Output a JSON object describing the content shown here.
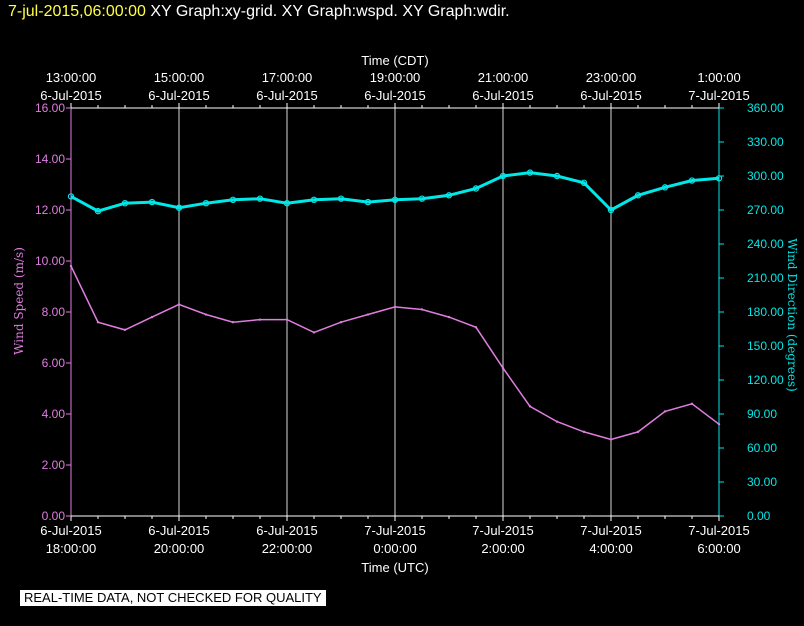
{
  "header": {
    "timestamp": "7-jul-2015,06:00:00",
    "title": "XY Graph:xy-grid.  XY Graph:wspd.  XY Graph:wdir."
  },
  "notice": "REAL-TIME DATA, NOT CHECKED FOR QUALITY",
  "colors": {
    "speed": "#e07ee0",
    "direction": "#00e8e8",
    "grid": "#ffffff",
    "text": "#ffffff",
    "timestamp": "#ffff44"
  },
  "chart_data": {
    "type": "line",
    "top_axis": {
      "label": "Time (CDT)",
      "ticks": [
        {
          "time": "13:00:00",
          "date": "6-Jul-2015"
        },
        {
          "time": "15:00:00",
          "date": "6-Jul-2015"
        },
        {
          "time": "17:00:00",
          "date": "6-Jul-2015"
        },
        {
          "time": "19:00:00",
          "date": "6-Jul-2015"
        },
        {
          "time": "21:00:00",
          "date": "6-Jul-2015"
        },
        {
          "time": "23:00:00",
          "date": "6-Jul-2015"
        },
        {
          "time": "1:00:00",
          "date": "7-Jul-2015"
        }
      ]
    },
    "bottom_axis": {
      "label": "Time (UTC)",
      "range": [
        "2015-07-06T18:00:00",
        "2015-07-07T06:00:00"
      ],
      "ticks": [
        {
          "date": "6-Jul-2015",
          "time": "18:00:00"
        },
        {
          "date": "6-Jul-2015",
          "time": "20:00:00"
        },
        {
          "date": "6-Jul-2015",
          "time": "22:00:00"
        },
        {
          "date": "7-Jul-2015",
          "time": "0:00:00"
        },
        {
          "date": "7-Jul-2015",
          "time": "2:00:00"
        },
        {
          "date": "7-Jul-2015",
          "time": "4:00:00"
        },
        {
          "date": "7-Jul-2015",
          "time": "6:00:00"
        }
      ]
    },
    "left_axis": {
      "label": "Wind Speed (m/s)",
      "ylim": [
        0,
        16
      ],
      "ticks": [
        "0.00",
        "2.00",
        "4.00",
        "6.00",
        "8.00",
        "10.00",
        "12.00",
        "14.00",
        "16.00"
      ]
    },
    "right_axis": {
      "label": "Wind Direction (degrees)",
      "ylim": [
        0,
        360
      ],
      "ticks": [
        "0.00",
        "30.00",
        "60.00",
        "90.00",
        "120.00",
        "150.00",
        "180.00",
        "210.00",
        "240.00",
        "270.00",
        "300.00",
        "330.00",
        "360.00"
      ]
    },
    "grid": true,
    "series": [
      {
        "axis": "left",
        "style": "line",
        "points": [
          [
            "2015-07-06T18:00:00",
            9.8
          ],
          [
            "2015-07-06T18:30:00",
            7.6
          ],
          [
            "2015-07-06T19:00:00",
            7.3
          ],
          [
            "2015-07-06T19:30:00",
            7.8
          ],
          [
            "2015-07-06T20:00:00",
            8.3
          ],
          [
            "2015-07-06T20:30:00",
            7.9
          ],
          [
            "2015-07-06T21:00:00",
            7.6
          ],
          [
            "2015-07-06T21:30:00",
            7.7
          ],
          [
            "2015-07-06T22:00:00",
            7.7
          ],
          [
            "2015-07-06T22:30:00",
            7.2
          ],
          [
            "2015-07-06T23:00:00",
            7.6
          ],
          [
            "2015-07-06T23:30:00",
            7.9
          ],
          [
            "2015-07-07T00:00:00",
            8.2
          ],
          [
            "2015-07-07T00:30:00",
            8.1
          ],
          [
            "2015-07-07T01:00:00",
            7.8
          ],
          [
            "2015-07-07T01:30:00",
            7.4
          ],
          [
            "2015-07-07T02:00:00",
            5.8
          ],
          [
            "2015-07-07T02:30:00",
            4.3
          ],
          [
            "2015-07-07T03:00:00",
            3.7
          ],
          [
            "2015-07-07T03:30:00",
            3.3
          ],
          [
            "2015-07-07T04:00:00",
            3.0
          ],
          [
            "2015-07-07T04:30:00",
            3.3
          ],
          [
            "2015-07-07T05:00:00",
            4.1
          ],
          [
            "2015-07-07T05:30:00",
            4.4
          ],
          [
            "2015-07-07T06:00:00",
            3.6
          ]
        ]
      },
      {
        "axis": "right",
        "style": "line-markers",
        "points": [
          [
            "2015-07-06T18:00:00",
            282
          ],
          [
            "2015-07-06T18:30:00",
            269
          ],
          [
            "2015-07-06T19:00:00",
            276
          ],
          [
            "2015-07-06T19:30:00",
            277
          ],
          [
            "2015-07-06T20:00:00",
            272
          ],
          [
            "2015-07-06T20:30:00",
            276
          ],
          [
            "2015-07-06T21:00:00",
            279
          ],
          [
            "2015-07-06T21:30:00",
            280
          ],
          [
            "2015-07-06T22:00:00",
            276
          ],
          [
            "2015-07-06T22:30:00",
            279
          ],
          [
            "2015-07-06T23:00:00",
            280
          ],
          [
            "2015-07-06T23:30:00",
            277
          ],
          [
            "2015-07-07T00:00:00",
            279
          ],
          [
            "2015-07-07T00:30:00",
            280
          ],
          [
            "2015-07-07T01:00:00",
            283
          ],
          [
            "2015-07-07T01:30:00",
            289
          ],
          [
            "2015-07-07T02:00:00",
            300
          ],
          [
            "2015-07-07T02:30:00",
            303
          ],
          [
            "2015-07-07T03:00:00",
            300
          ],
          [
            "2015-07-07T03:30:00",
            294
          ],
          [
            "2015-07-07T04:00:00",
            270
          ],
          [
            "2015-07-07T04:30:00",
            283
          ],
          [
            "2015-07-07T05:00:00",
            290
          ],
          [
            "2015-07-07T05:30:00",
            296
          ],
          [
            "2015-07-07T06:00:00",
            298
          ]
        ]
      }
    ]
  }
}
